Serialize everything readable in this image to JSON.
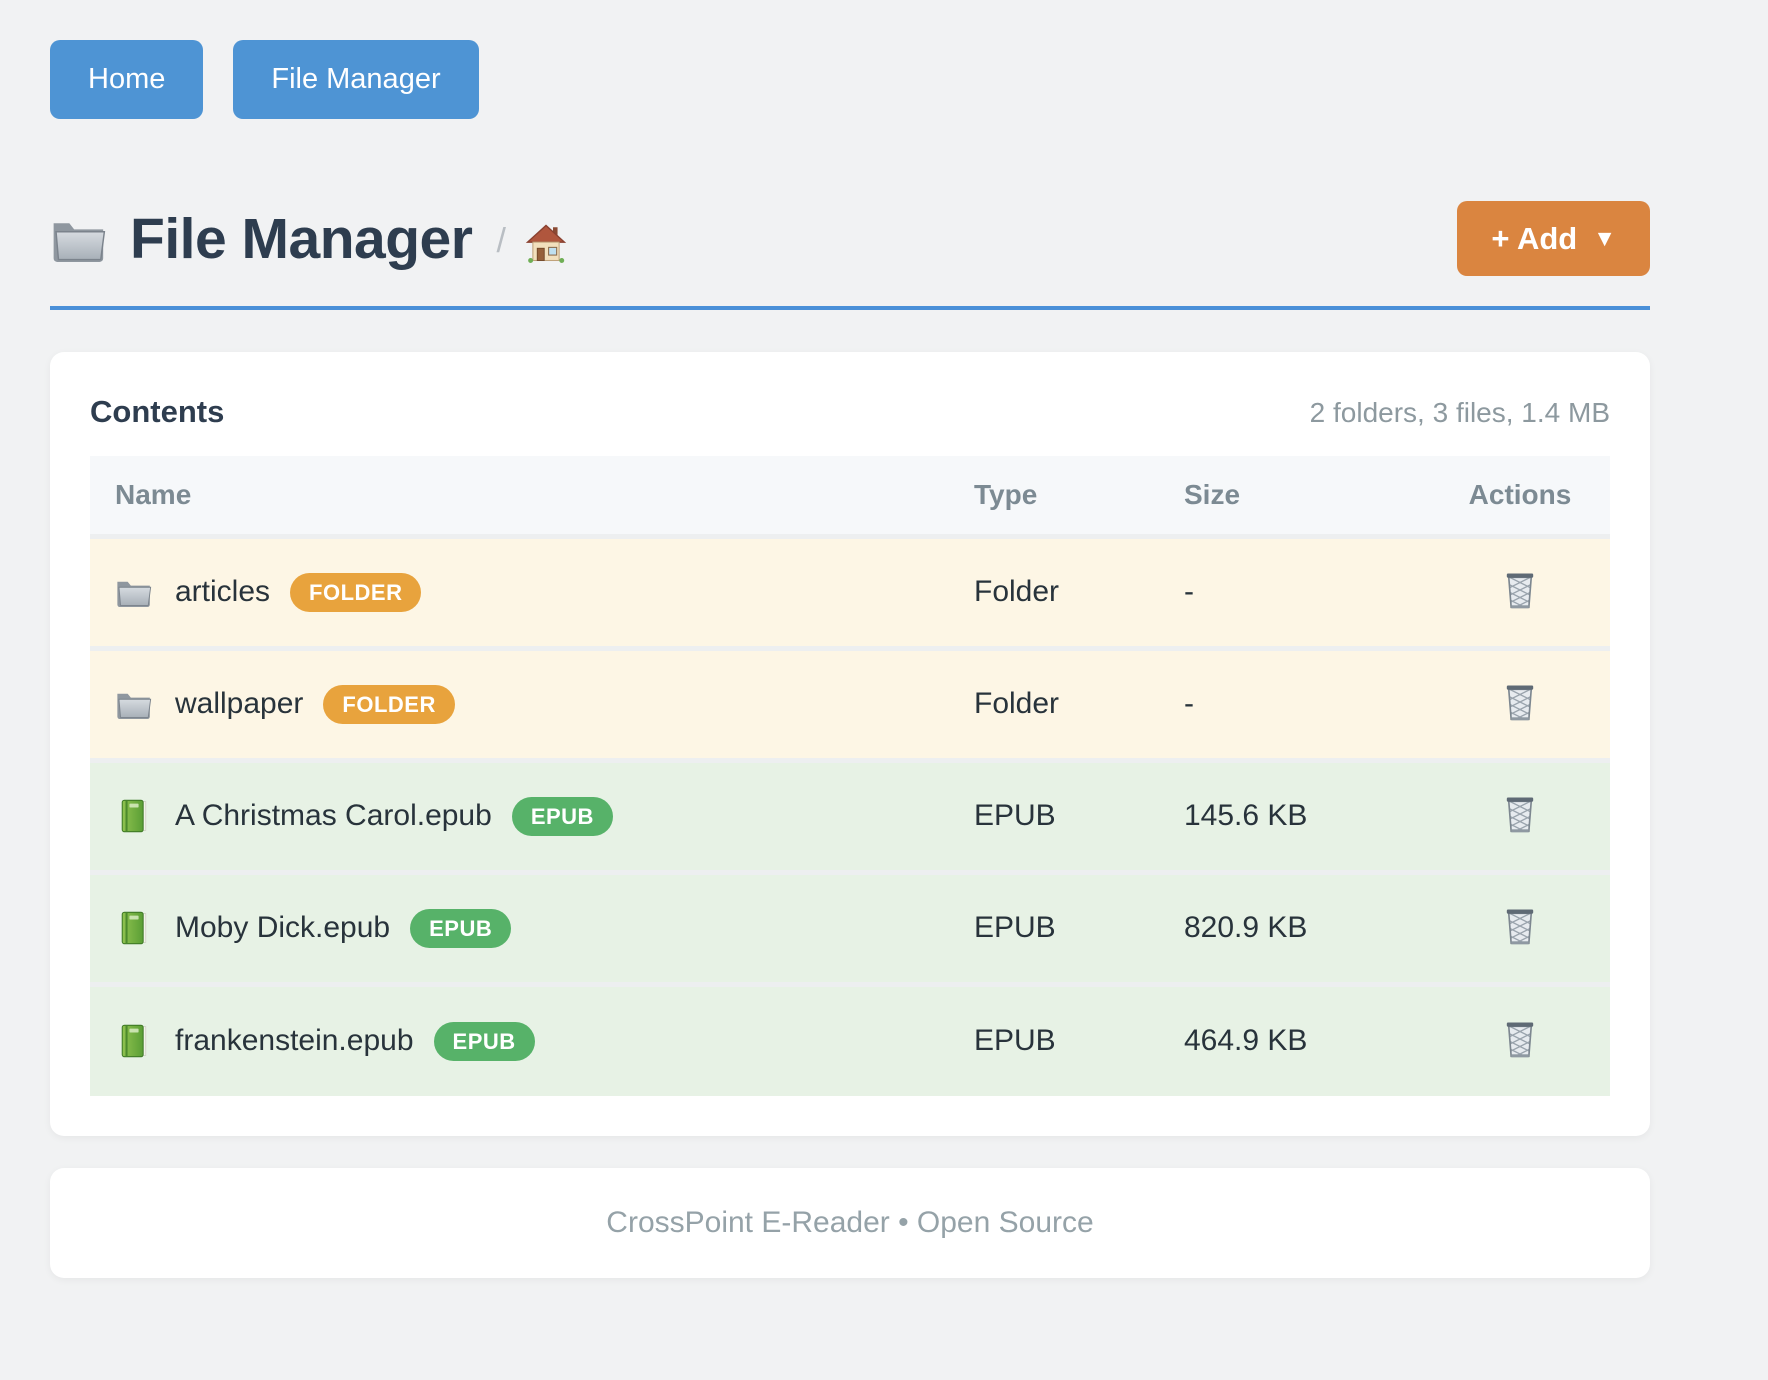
{
  "nav": {
    "home_label": "Home",
    "file_manager_label": "File Manager"
  },
  "header": {
    "title": "File Manager",
    "title_icon": "folder-icon",
    "breadcrumb_separator": "/",
    "breadcrumb_home_icon": "house-icon",
    "add_button_label": "+ Add",
    "add_button_caret": "▼"
  },
  "contents": {
    "title": "Contents",
    "summary": "2 folders, 3 files, 1.4 MB",
    "table": {
      "columns": [
        "Name",
        "Type",
        "Size",
        "Actions"
      ],
      "rows": [
        {
          "name": "articles",
          "badge": "FOLDER",
          "icon": "folder-icon",
          "type": "Folder",
          "size": "-",
          "kind": "folder"
        },
        {
          "name": "wallpaper",
          "badge": "FOLDER",
          "icon": "folder-icon",
          "type": "Folder",
          "size": "-",
          "kind": "folder"
        },
        {
          "name": "A Christmas Carol.epub",
          "badge": "EPUB",
          "icon": "book-icon",
          "type": "EPUB",
          "size": "145.6 KB",
          "kind": "epub"
        },
        {
          "name": "Moby Dick.epub",
          "badge": "EPUB",
          "icon": "book-icon",
          "type": "EPUB",
          "size": "820.9 KB",
          "kind": "epub"
        },
        {
          "name": "frankenstein.epub",
          "badge": "EPUB",
          "icon": "book-icon",
          "type": "EPUB",
          "size": "464.9 KB",
          "kind": "epub"
        }
      ],
      "action_icon": "trash-icon"
    }
  },
  "footer": {
    "text": "CrossPoint E-Reader • Open Source"
  },
  "colors": {
    "page_background": "#f1f2f3",
    "nav_button_blue": "#4e94d4",
    "title_rule_blue": "#4a90d8",
    "add_button_orange": "#da8540",
    "badge_folder_orange": "#e8a33d",
    "badge_epub_green": "#57b269",
    "row_folder_background": "#fdf6e5",
    "row_epub_background": "#e7f2e5",
    "table_header_background": "#f6f8fa",
    "heading_text": "#2e3d4f",
    "muted_text": "#8d999f"
  }
}
